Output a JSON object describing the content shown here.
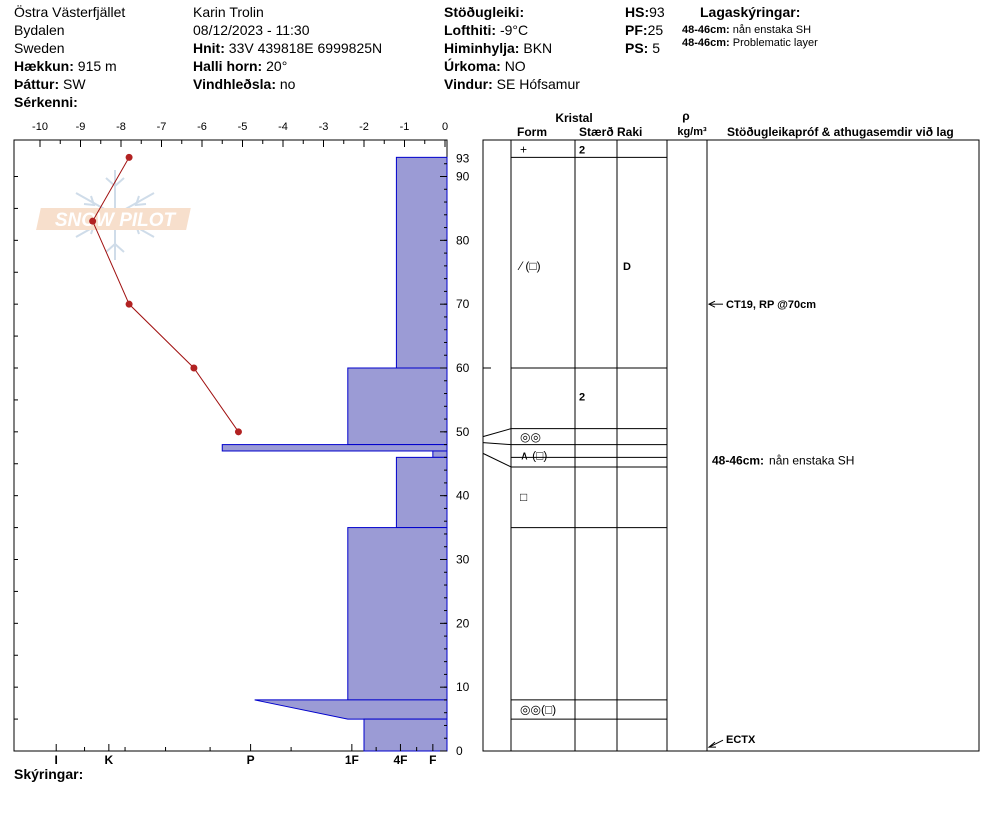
{
  "header": {
    "location": "Östra Västerfjället",
    "area": "Bydalen",
    "country": "Sweden",
    "elevation_label": "Hækkun:",
    "elevation_value": "915 m",
    "aspect_label": "Þáttur:",
    "aspect_value": "SW",
    "features_label": "Sérkenni:",
    "observer": "Karin  Trolin",
    "datetime": "08/12/2023 - 11:30",
    "coords_label": "Hnit:",
    "coords_value": "33V 439818E 6999825N",
    "slope_label": "Halli horn:",
    "slope_value": "20°",
    "wind_loading_label": "Vindhleðsla:",
    "wind_loading_value": "no",
    "stability_label": "Stöðugleiki:",
    "air_temp_label": "Lofthiti:",
    "air_temp_value": "-9°C",
    "sky_label": "Himinhylja:",
    "sky_value": "BKN",
    "precip_label": "Úrkoma:",
    "precip_value": "NO",
    "wind_label": "Vindur:",
    "wind_value": "SE Hófsamur",
    "hs_label": "HS:",
    "hs_value": "93",
    "pf_label": "PF:",
    "pf_value": "25",
    "ps_label": "PS:",
    "ps_value": "5",
    "layer_notes_label": "Lagaskýringar:",
    "layer_notes": [
      {
        "depth": "48-46cm:",
        "text": "nån enstaka SH"
      },
      {
        "depth": "48-46cm:",
        "text": "Problematic layer"
      }
    ]
  },
  "comments_label": "Skýringar:",
  "logo_text": "SNOW PILOT",
  "colors": {
    "hardness_fill": "#9b9bd5",
    "hardness_stroke": "#0000cc",
    "temp_line": "#a01010",
    "temp_point": "#b22222"
  },
  "chart_data": {
    "type": "line",
    "temp_axis": {
      "ticks": [
        "-10",
        "-9",
        "-8",
        "-7",
        "-6",
        "-5",
        "-4",
        "-3",
        "-2",
        "-1",
        "0"
      ],
      "range": [
        -10,
        0
      ]
    },
    "height_axis": {
      "ticks": [
        "0",
        "10",
        "20",
        "30",
        "40",
        "50",
        "60",
        "70",
        "80",
        "90"
      ],
      "top_label": "93",
      "range": [
        0,
        93
      ]
    },
    "hardness_axis": {
      "labels": [
        "I",
        "K",
        "P",
        "1F",
        "4F",
        "F"
      ],
      "positions": [
        -9.6,
        -8.3,
        -4.8,
        -2.3,
        -1.1,
        -0.3
      ]
    },
    "temperature_profile": [
      {
        "height": 93,
        "temp": -7.8
      },
      {
        "height": 83,
        "temp": -8.7
      },
      {
        "height": 70,
        "temp": -7.8
      },
      {
        "height": 60,
        "temp": -6.2
      },
      {
        "height": 50,
        "temp": -5.1
      }
    ],
    "hardness_profile": [
      {
        "top": 93,
        "bottom": 60,
        "hardness": -1.2
      },
      {
        "top": 60,
        "bottom": 48,
        "hardness": -2.4
      },
      {
        "top": 48,
        "bottom": 47,
        "hardness": -5.5
      },
      {
        "top": 47,
        "bottom": 46,
        "hardness": -0.3
      },
      {
        "top": 46,
        "bottom": 35,
        "hardness": -1.2
      },
      {
        "top": 35,
        "bottom": 8,
        "hardness": -2.4
      },
      {
        "top": 8,
        "bottom": 5,
        "hardness": -4.7,
        "wedge": true
      },
      {
        "top": 5,
        "bottom": 0,
        "hardness": -2.0
      }
    ],
    "layer_boundaries": [
      93,
      60,
      50.5,
      48,
      46,
      44.5,
      35,
      8,
      5,
      0
    ],
    "columns": {
      "crystal": "Kristal",
      "form": "Form",
      "size": "Stærð",
      "moisture": "Raki",
      "density_symbol": "ρ",
      "density_unit": "kg/m³",
      "tests_header": "Stöðugleikapróf & athugasemdir við lag"
    },
    "layers": [
      {
        "height": 94.2,
        "form": "+",
        "size": "2",
        "moisture": ""
      },
      {
        "height": 76,
        "form": "⁄ (□)",
        "size": "",
        "moisture": "D"
      },
      {
        "height": 55.5,
        "form": "",
        "size": "2",
        "moisture": ""
      },
      {
        "height": 49.2,
        "form": "◎◎",
        "size": "",
        "moisture": ""
      },
      {
        "height": 46.3,
        "form": "∧ (□)",
        "size": "",
        "moisture": ""
      },
      {
        "height": 39.8,
        "form": "□",
        "size": "",
        "moisture": ""
      },
      {
        "height": 6.5,
        "form": "◎◎(□)",
        "size": "",
        "moisture": ""
      }
    ],
    "tests": [
      {
        "height": 70,
        "label": "CT19, RP @70cm"
      },
      {
        "height": 0.6,
        "label": "ECTX"
      }
    ],
    "layer_comments": [
      {
        "height": 45.5,
        "depth": "48-46cm:",
        "text": "nån enstaka SH"
      }
    ]
  }
}
